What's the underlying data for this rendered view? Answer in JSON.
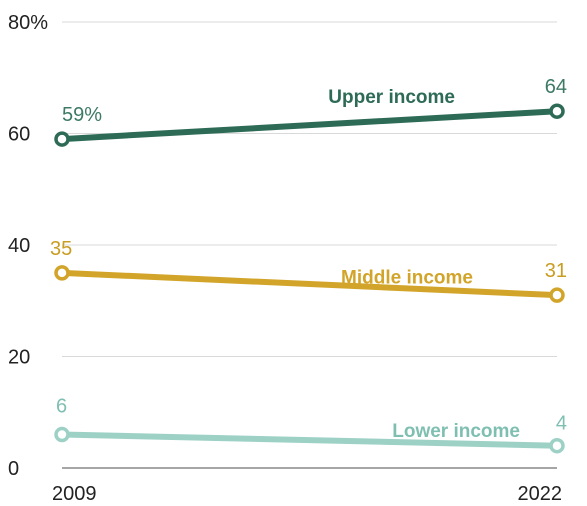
{
  "chart_data": {
    "type": "line",
    "x": [
      "2009",
      "2022"
    ],
    "ylim": [
      0,
      80
    ],
    "y_ticks": [
      0,
      20,
      40,
      60,
      80
    ],
    "y_tick_labels": [
      "0",
      "20",
      "40",
      "60",
      "80%"
    ],
    "grid": true,
    "series": [
      {
        "name": "Upper income",
        "values": [
          59,
          64
        ],
        "point_labels": [
          "59%",
          "64"
        ],
        "color": "#2e6b57",
        "name_anchor": "end"
      },
      {
        "name": "Middle income",
        "values": [
          35,
          31
        ],
        "point_labels": [
          "35",
          "31"
        ],
        "color": "#d2a52a",
        "name_anchor": "end"
      },
      {
        "name": "Lower income",
        "values": [
          6,
          4
        ],
        "point_labels": [
          "6",
          "4"
        ],
        "color": "#9dd1c6",
        "name_anchor": "end"
      }
    ],
    "colors": {
      "grid": "#d9d9d9",
      "axis": "#888888",
      "tick_text": "#222222"
    }
  }
}
